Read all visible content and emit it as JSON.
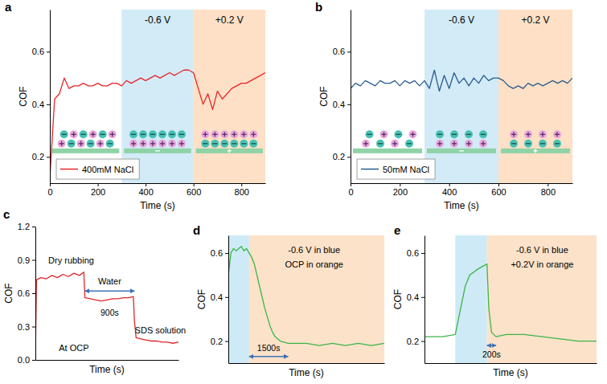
{
  "chart_data": [
    {
      "panel_label": "a",
      "type": "line",
      "x_label": "Time (s)",
      "y_label": "COF",
      "x": [
        0,
        20,
        40,
        60,
        80,
        100,
        120,
        140,
        160,
        180,
        200,
        220,
        240,
        260,
        280,
        300,
        320,
        340,
        360,
        380,
        400,
        420,
        440,
        460,
        480,
        500,
        520,
        540,
        560,
        580,
        600,
        620,
        640,
        660,
        680,
        700,
        720,
        740,
        760,
        780,
        800,
        820,
        840,
        860,
        880,
        900
      ],
      "series": [
        {
          "name": "400mM NaCl",
          "color": "#e8262b",
          "values": [
            0.12,
            0.42,
            0.44,
            0.5,
            0.46,
            0.47,
            0.47,
            0.48,
            0.47,
            0.47,
            0.48,
            0.47,
            0.47,
            0.48,
            0.48,
            0.47,
            0.49,
            0.48,
            0.49,
            0.5,
            0.49,
            0.5,
            0.51,
            0.5,
            0.51,
            0.52,
            0.51,
            0.52,
            0.53,
            0.53,
            0.52,
            0.46,
            0.4,
            0.44,
            0.38,
            0.45,
            0.42,
            0.44,
            0.46,
            0.47,
            0.48,
            0.48,
            0.49,
            0.5,
            0.51,
            0.52
          ]
        }
      ],
      "xlim": [
        0,
        900
      ],
      "ylim": [
        0.1,
        0.76
      ],
      "xticks": [
        0,
        200,
        400,
        600,
        800
      ],
      "yticks": [
        0.2,
        0.4,
        0.6
      ],
      "legend": "lower left",
      "regions": [
        {
          "x": [
            300,
            600
          ],
          "color": "#d2ebf7",
          "label": "-0.6 V"
        },
        {
          "x": [
            600,
            900
          ],
          "color": "#fde0c5",
          "label": "+0.2 V"
        }
      ]
    },
    {
      "panel_label": "b",
      "type": "line",
      "x_label": "Time (s)",
      "y_label": "COF",
      "x": [
        0,
        20,
        40,
        60,
        80,
        100,
        120,
        140,
        160,
        180,
        200,
        220,
        240,
        260,
        280,
        300,
        320,
        340,
        360,
        380,
        400,
        420,
        440,
        460,
        480,
        500,
        520,
        540,
        560,
        580,
        600,
        620,
        640,
        660,
        680,
        700,
        720,
        740,
        760,
        780,
        800,
        820,
        840,
        860,
        880,
        900
      ],
      "series": [
        {
          "name": "50mM NaCl",
          "color": "#2b5d8f",
          "values": [
            0.46,
            0.48,
            0.47,
            0.49,
            0.48,
            0.47,
            0.49,
            0.48,
            0.48,
            0.49,
            0.47,
            0.49,
            0.48,
            0.49,
            0.47,
            0.49,
            0.46,
            0.53,
            0.45,
            0.51,
            0.46,
            0.52,
            0.48,
            0.5,
            0.47,
            0.5,
            0.48,
            0.51,
            0.49,
            0.5,
            0.5,
            0.49,
            0.47,
            0.46,
            0.47,
            0.46,
            0.48,
            0.47,
            0.48,
            0.47,
            0.48,
            0.49,
            0.48,
            0.49,
            0.48,
            0.5
          ]
        }
      ],
      "xlim": [
        0,
        900
      ],
      "ylim": [
        0.1,
        0.76
      ],
      "xticks": [
        0,
        200,
        400,
        600,
        800
      ],
      "yticks": [
        0.2,
        0.4,
        0.6
      ],
      "legend": "lower left",
      "regions": [
        {
          "x": [
            300,
            600
          ],
          "color": "#d2ebf7",
          "label": "-0.6 V"
        },
        {
          "x": [
            600,
            900
          ],
          "color": "#fde0c5",
          "label": "+0.2 V"
        }
      ]
    },
    {
      "panel_label": "c",
      "type": "line",
      "x_label": "Time (s)",
      "y_label": "COF",
      "x": [
        0,
        20,
        100,
        200,
        300,
        400,
        500,
        600,
        700,
        800,
        880,
        900,
        1000,
        1100,
        1200,
        1300,
        1400,
        1500,
        1600,
        1700,
        1780,
        1800,
        1830,
        1900,
        2000,
        2100,
        2200,
        2300,
        2400,
        2500,
        2600
      ],
      "series": [
        {
          "color": "#e0262a",
          "values": [
            0.02,
            0.72,
            0.74,
            0.73,
            0.76,
            0.74,
            0.77,
            0.75,
            0.78,
            0.76,
            0.79,
            0.56,
            0.55,
            0.54,
            0.53,
            0.54,
            0.55,
            0.55,
            0.56,
            0.56,
            0.57,
            0.35,
            0.2,
            0.19,
            0.18,
            0.17,
            0.17,
            0.16,
            0.16,
            0.15,
            0.16
          ]
        }
      ],
      "xlim": [
        0,
        2600
      ],
      "ylim": [
        0,
        1.2
      ],
      "xticks": [],
      "yticks": [
        {
          "value": 0,
          "label": "0.0"
        },
        0.3,
        0.6,
        0.9,
        1.2
      ],
      "tick_labels": "y",
      "annotations": [
        {
          "text": "Dry rubbing",
          "x": 650,
          "y": 0.87
        },
        {
          "text": "Water",
          "x": 1350,
          "y": 0.68
        },
        {
          "text": "SDS solution",
          "x": 2270,
          "y": 0.24
        },
        {
          "text": "At OCP",
          "x": 700,
          "y": 0.08
        }
      ],
      "spans": [
        {
          "x": [
            900,
            1800
          ],
          "y": 0.62,
          "label": "900s",
          "label_y": 0.4
        }
      ]
    },
    {
      "panel_label": "d",
      "type": "line",
      "x_label": "Time (s)",
      "y_label": "COF",
      "x": [
        0,
        100,
        200,
        300,
        400,
        500,
        600,
        700,
        800,
        900,
        1000,
        1100,
        1200,
        1300,
        1400,
        1500,
        1600,
        1700,
        1800,
        2000,
        2300,
        2600,
        3000,
        3500,
        4000,
        4500,
        5000,
        5500,
        6000
      ],
      "series": [
        {
          "color": "#3db54a",
          "values": [
            0.5,
            0.6,
            0.62,
            0.61,
            0.62,
            0.63,
            0.61,
            0.62,
            0.6,
            0.58,
            0.55,
            0.5,
            0.45,
            0.4,
            0.35,
            0.31,
            0.27,
            0.24,
            0.22,
            0.2,
            0.19,
            0.19,
            0.19,
            0.18,
            0.19,
            0.18,
            0.19,
            0.18,
            0.19
          ]
        }
      ],
      "xlim": [
        0,
        6000
      ],
      "ylim": [
        0.1,
        0.68
      ],
      "xticks": [],
      "yticks": [
        0.2,
        0.4,
        0.6
      ],
      "tick_labels": "y",
      "regions": [
        {
          "x": [
            0,
            800
          ],
          "color": "#cdeaf6"
        },
        {
          "x": [
            800,
            6000
          ],
          "color": "#fce2c9"
        }
      ],
      "annotations": [
        {
          "text": "-0.6 V in blue",
          "x": 3300,
          "y": 0.6
        },
        {
          "text": "OCP in orange",
          "x": 3300,
          "y": 0.535
        }
      ],
      "spans": [
        {
          "x": [
            800,
            2300
          ],
          "y": 0.13,
          "label": "1500s",
          "label_y": 0.155
        }
      ]
    },
    {
      "panel_label": "e",
      "type": "line",
      "x_label": "Time (s)",
      "y_label": "COF",
      "x": [
        0,
        200,
        400,
        680,
        800,
        900,
        1000,
        1200,
        1380,
        1420,
        1480,
        1580,
        1800,
        2200,
        2600,
        3000,
        3400,
        3800
      ],
      "series": [
        {
          "color": "#3db54a",
          "values": [
            0.22,
            0.22,
            0.22,
            0.23,
            0.35,
            0.45,
            0.5,
            0.53,
            0.55,
            0.35,
            0.24,
            0.22,
            0.23,
            0.23,
            0.22,
            0.21,
            0.2,
            0.2
          ]
        }
      ],
      "xlim": [
        0,
        3800
      ],
      "ylim": [
        0.1,
        0.68
      ],
      "xticks": [],
      "yticks": [
        0.2,
        0.4,
        0.6
      ],
      "tick_labels": "y",
      "regions": [
        {
          "x": [
            680,
            1380
          ],
          "color": "#cdeaf6"
        },
        {
          "x": [
            1380,
            3800
          ],
          "color": "#fce2c9"
        }
      ],
      "annotations": [
        {
          "text": "-0.6 V in blue",
          "x": 2600,
          "y": 0.6
        },
        {
          "text": "+0.2V in orange",
          "x": 2600,
          "y": 0.535
        }
      ],
      "spans": [
        {
          "x": [
            1380,
            1580
          ],
          "y": 0.18,
          "label": "200s",
          "label_y": 0.125
        }
      ]
    }
  ]
}
